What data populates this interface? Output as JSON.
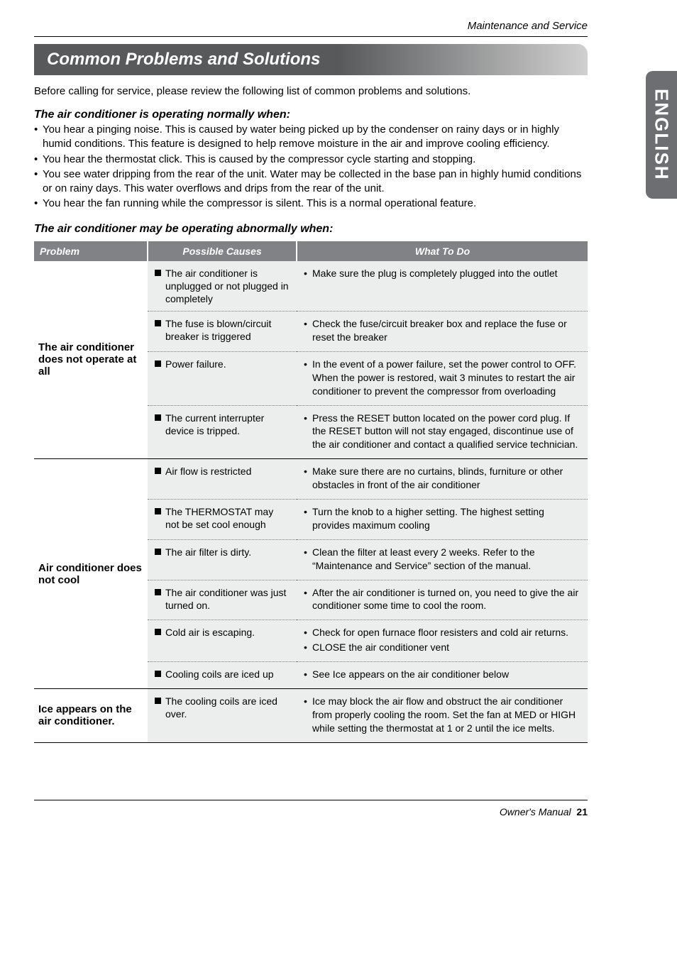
{
  "header": {
    "section_label": "Maintenance and Service"
  },
  "sideTab": {
    "label": "ENGLISH",
    "bg": "#6d6e71",
    "color": "#ffffff"
  },
  "title": "Common Problems and Solutions",
  "intro": "Before calling for service, please review the following list of common problems and solutions.",
  "normal": {
    "heading": "The air conditioner is operating normally when:",
    "items": [
      "You hear a pinging noise.  This is caused by water being picked up by the condenser on rainy days or in highly humid conditions. This feature is designed to help remove moisture in the air and improve cooling efficiency.",
      "You hear the thermostat click. This is caused by the compressor cycle starting and stopping.",
      "You see water dripping from the rear of the unit.  Water may be collected in the base pan in highly humid conditions or on rainy days. This water overflows and drips from the rear of the unit.",
      "You hear the fan running while the compressor is silent. This is a normal operational feature."
    ]
  },
  "abnormal_heading": "The air conditioner may be operating abnormally when:",
  "table": {
    "headers": {
      "problem": "Problem",
      "causes": "Possible Causes",
      "todo": "What To Do"
    },
    "header_bg": "#808285",
    "cell_bg": "#eceded",
    "groups": [
      {
        "problem": "The air conditioner does not operate at all",
        "rows": [
          {
            "cause": "The air conditioner is unplugged or not plugged in completely",
            "todo": [
              "Make sure the plug is completely plugged into the outlet"
            ],
            "border": "dotted"
          },
          {
            "cause": "The fuse is blown/circuit breaker is triggered",
            "todo": [
              "Check the fuse/circuit breaker box and replace the fuse or reset the breaker"
            ],
            "border": "dotted"
          },
          {
            "cause": "Power failure.",
            "todo": [
              "In the event of a power failure, set the power control to OFF. When the power is restored, wait 3 minutes to restart the air conditioner to prevent the compressor from overloading"
            ],
            "border": "dotted"
          },
          {
            "cause": "The current interrupter device is tripped.",
            "todo": [
              "Press the RESET button located on the power cord plug. If the RESET button will not stay engaged, discontinue use of the air conditioner and contact a qualified service technician."
            ],
            "border": "solid"
          }
        ]
      },
      {
        "problem": "Air conditioner does not cool",
        "rows": [
          {
            "cause": "Air flow is restricted",
            "todo": [
              "Make sure there are no curtains, blinds, furniture or other obstacles in front of the air conditioner"
            ],
            "border": "dotted"
          },
          {
            "cause": "The THERMOSTAT may not be set cool enough",
            "todo": [
              "Turn the knob to a higher setting. The highest setting provides maximum cooling"
            ],
            "border": "dotted"
          },
          {
            "cause": "The air filter is dirty.",
            "todo": [
              "Clean the filter at least every 2 weeks. Refer to the “Maintenance and Service” section of the manual."
            ],
            "border": "dotted"
          },
          {
            "cause": "The air conditioner was just turned on.",
            "todo": [
              "After the air conditioner is turned on, you need to give the air conditioner some time to cool the room."
            ],
            "border": "dotted"
          },
          {
            "cause": "Cold air is escaping.",
            "todo": [
              "Check for open furnace floor resisters and cold air returns.",
              "CLOSE the air conditioner vent"
            ],
            "border": "dotted"
          },
          {
            "cause": "Cooling coils are iced up",
            "todo": [
              "See Ice appears on the air conditioner below"
            ],
            "border": "solid"
          }
        ]
      },
      {
        "problem": "Ice appears on the air conditioner.",
        "rows": [
          {
            "cause": "The cooling coils are iced over.",
            "todo": [
              "Ice may block the air flow and obstruct the air conditioner from properly cooling the room.  Set the fan at MED or HIGH while setting the thermostat at 1 or 2 until the ice melts."
            ],
            "border": "solid"
          }
        ]
      }
    ]
  },
  "footer": {
    "label": "Owner's Manual",
    "page": "21"
  }
}
